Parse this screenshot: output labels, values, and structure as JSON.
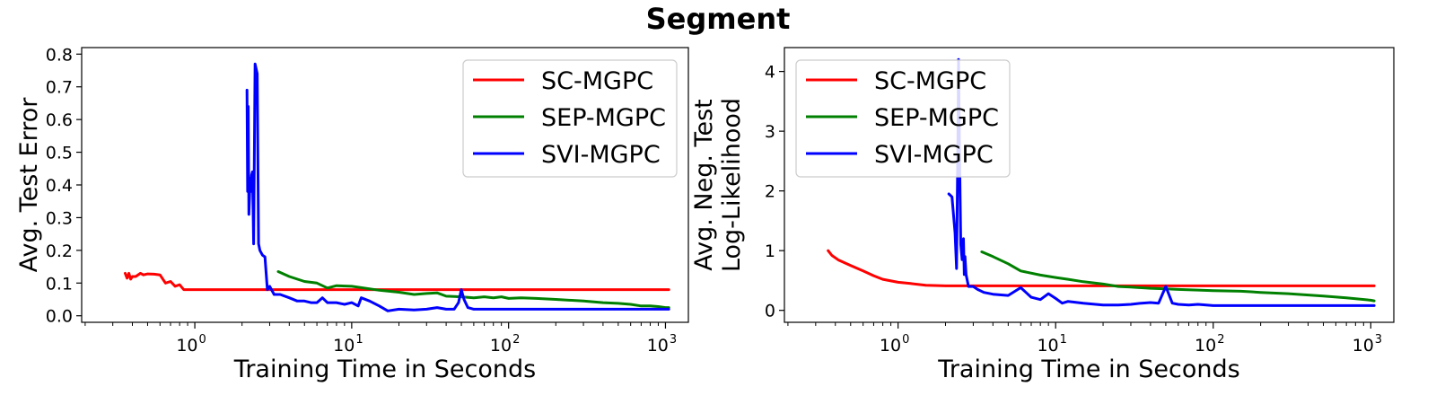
{
  "figure": {
    "title": "Segment"
  },
  "colors": {
    "SC-MGPC": "#ff0000",
    "SEP-MGPC": "#008000",
    "SVI-MGPC": "#0000ff"
  },
  "chart_data": [
    {
      "type": "line",
      "title": "",
      "xlabel": "Training Time in Seconds",
      "ylabel": "Avg. Test Error",
      "xscale": "log",
      "xlim": [
        0.19,
        1400
      ],
      "ylim": [
        -0.02,
        0.82
      ],
      "xticks": [
        1,
        10,
        100,
        1000
      ],
      "xtick_labels": [
        [
          "10",
          "0"
        ],
        [
          "10",
          "1"
        ],
        [
          "10",
          "2"
        ],
        [
          "10",
          "3"
        ]
      ],
      "yticks": [
        0.0,
        0.1,
        0.2,
        0.3,
        0.4,
        0.5,
        0.6,
        0.7,
        0.8
      ],
      "ytick_labels": [
        "0.0",
        "0.1",
        "0.2",
        "0.3",
        "0.4",
        "0.5",
        "0.6",
        "0.7",
        "0.8"
      ],
      "grid": false,
      "legend": "top-right",
      "series": [
        {
          "name": "SC-MGPC",
          "color": "#ff0000",
          "x": [
            0.36,
            0.37,
            0.38,
            0.39,
            0.4,
            0.42,
            0.45,
            0.47,
            0.5,
            0.55,
            0.6,
            0.65,
            0.7,
            0.75,
            0.8,
            0.85,
            0.9,
            1.0,
            2.0,
            5.0,
            10,
            50,
            100,
            500,
            1050
          ],
          "y": [
            0.13,
            0.115,
            0.13,
            0.112,
            0.12,
            0.12,
            0.13,
            0.125,
            0.128,
            0.127,
            0.125,
            0.1,
            0.105,
            0.09,
            0.095,
            0.08,
            0.08,
            0.08,
            0.08,
            0.08,
            0.08,
            0.08,
            0.08,
            0.08,
            0.08
          ]
        },
        {
          "name": "SEP-MGPC",
          "color": "#008000",
          "x": [
            3.4,
            4.0,
            5.0,
            6.0,
            7.0,
            8.0,
            10,
            12,
            15,
            20,
            25,
            30,
            35,
            40,
            50,
            60,
            70,
            80,
            90,
            100,
            120,
            150,
            200,
            300,
            400,
            500,
            600,
            700,
            800,
            900,
            1000,
            1050
          ],
          "y": [
            0.135,
            0.12,
            0.105,
            0.1,
            0.085,
            0.092,
            0.09,
            0.085,
            0.078,
            0.072,
            0.065,
            0.068,
            0.07,
            0.06,
            0.058,
            0.055,
            0.058,
            0.055,
            0.058,
            0.053,
            0.055,
            0.053,
            0.05,
            0.045,
            0.04,
            0.038,
            0.035,
            0.03,
            0.03,
            0.028,
            0.025,
            0.025
          ]
        },
        {
          "name": "SVI-MGPC",
          "color": "#0000ff",
          "x": [
            2.15,
            2.17,
            2.19,
            2.21,
            2.23,
            2.25,
            2.28,
            2.3,
            2.33,
            2.37,
            2.42,
            2.5,
            2.55,
            2.6,
            2.7,
            2.8,
            2.9,
            3.0,
            3.2,
            3.5,
            4.0,
            4.5,
            5.0,
            5.5,
            6.0,
            6.5,
            7.0,
            8.0,
            9.0,
            10.0,
            11.0,
            11.5,
            13.0,
            15.0,
            17.0,
            20.0,
            25.0,
            30.0,
            35.0,
            40.0,
            45.0,
            48.0,
            50.0,
            52.0,
            55.0,
            60.0,
            70.0,
            80.0,
            100,
            200,
            500,
            1050
          ],
          "y": [
            0.69,
            0.38,
            0.64,
            0.31,
            0.36,
            0.42,
            0.38,
            0.43,
            0.44,
            0.22,
            0.77,
            0.74,
            0.22,
            0.2,
            0.185,
            0.18,
            0.08,
            0.09,
            0.065,
            0.065,
            0.055,
            0.045,
            0.045,
            0.04,
            0.04,
            0.055,
            0.04,
            0.04,
            0.035,
            0.04,
            0.03,
            0.055,
            0.045,
            0.03,
            0.015,
            0.02,
            0.018,
            0.02,
            0.025,
            0.02,
            0.02,
            0.04,
            0.08,
            0.05,
            0.025,
            0.02,
            0.02,
            0.02,
            0.02,
            0.02,
            0.02,
            0.02
          ]
        }
      ]
    },
    {
      "type": "line",
      "title": "",
      "xlabel": "Training Time in Seconds",
      "ylabel": [
        "Avg. Neg. Test",
        "Log-Likelihood"
      ],
      "xscale": "log",
      "xlim": [
        0.19,
        1400
      ],
      "ylim": [
        -0.2,
        4.4
      ],
      "xticks": [
        1,
        10,
        100,
        1000
      ],
      "xtick_labels": [
        [
          "10",
          "0"
        ],
        [
          "10",
          "1"
        ],
        [
          "10",
          "2"
        ],
        [
          "10",
          "3"
        ]
      ],
      "yticks": [
        0,
        1,
        2,
        3,
        4
      ],
      "ytick_labels": [
        "0",
        "1",
        "2",
        "3",
        "4"
      ],
      "grid": false,
      "legend": "top-left",
      "series": [
        {
          "name": "SC-MGPC",
          "color": "#ff0000",
          "x": [
            0.36,
            0.38,
            0.42,
            0.5,
            0.6,
            0.7,
            0.8,
            1.0,
            1.2,
            1.5,
            2.0,
            5.0,
            10,
            50,
            100,
            500,
            1050
          ],
          "y": [
            1.0,
            0.92,
            0.84,
            0.75,
            0.66,
            0.58,
            0.52,
            0.47,
            0.45,
            0.42,
            0.41,
            0.41,
            0.41,
            0.41,
            0.41,
            0.41,
            0.41
          ]
        },
        {
          "name": "SEP-MGPC",
          "color": "#008000",
          "x": [
            3.4,
            4.0,
            5.0,
            6.0,
            8.0,
            10,
            12,
            15,
            20,
            25,
            30,
            40,
            50,
            60,
            80,
            100,
            150,
            200,
            300,
            500,
            700,
            1000,
            1050
          ],
          "y": [
            0.98,
            0.9,
            0.78,
            0.66,
            0.59,
            0.55,
            0.52,
            0.48,
            0.44,
            0.4,
            0.39,
            0.37,
            0.36,
            0.35,
            0.34,
            0.33,
            0.32,
            0.3,
            0.28,
            0.24,
            0.21,
            0.17,
            0.16
          ]
        },
        {
          "name": "SVI-MGPC",
          "color": "#0000ff",
          "x": [
            2.1,
            2.2,
            2.3,
            2.35,
            2.4,
            2.42,
            2.45,
            2.5,
            2.55,
            2.6,
            2.63,
            2.66,
            2.7,
            2.8,
            3.0,
            3.2,
            3.5,
            4.0,
            5.0,
            6.0,
            7.0,
            8.0,
            9.0,
            10.0,
            11.0,
            12.0,
            15.0,
            20.0,
            25.0,
            30.0,
            35.0,
            40.0,
            45.0,
            50.0,
            55.0,
            60.0,
            70.0,
            80.0,
            100,
            200,
            500,
            1050
          ],
          "y": [
            1.95,
            1.9,
            1.3,
            0.7,
            3.0,
            4.2,
            2.8,
            1.1,
            0.85,
            1.2,
            0.6,
            0.9,
            0.6,
            0.4,
            0.4,
            0.35,
            0.3,
            0.27,
            0.25,
            0.38,
            0.22,
            0.18,
            0.28,
            0.2,
            0.12,
            0.15,
            0.12,
            0.09,
            0.09,
            0.1,
            0.12,
            0.13,
            0.12,
            0.4,
            0.12,
            0.1,
            0.09,
            0.1,
            0.08,
            0.08,
            0.08,
            0.08
          ]
        }
      ]
    }
  ]
}
